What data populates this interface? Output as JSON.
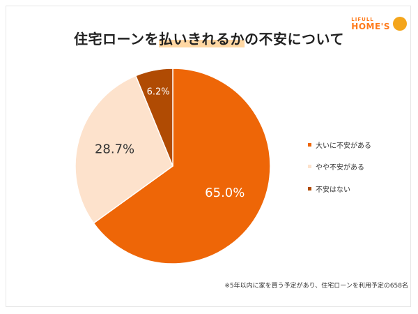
{
  "title": {
    "before": "住宅ローンを",
    "highlight": "払いきれるか",
    "after": "の不安について"
  },
  "logo": {
    "line1": "LIFULL",
    "line2": "HOME'S"
  },
  "footnote": "※5年以内に家を買う予定があり、住宅ローンを利用予定の658名",
  "colors": {
    "accent": "#ff7a1a",
    "highlight": "#ffd7a3"
  },
  "chart_data": {
    "type": "pie",
    "start_angle": "12 o'clock",
    "direction": "clockwise",
    "slices": [
      {
        "label": "大いに不安がある",
        "value": 65.0,
        "display": "65.0%",
        "color": "#ee6607"
      },
      {
        "label": "やや不安がある",
        "value": 28.7,
        "display": "28.7%",
        "color": "#fde2cc"
      },
      {
        "label": "不安はない",
        "value": 6.2,
        "display": "6.2%",
        "color": "#b04b03"
      }
    ],
    "legend_position": "right"
  }
}
